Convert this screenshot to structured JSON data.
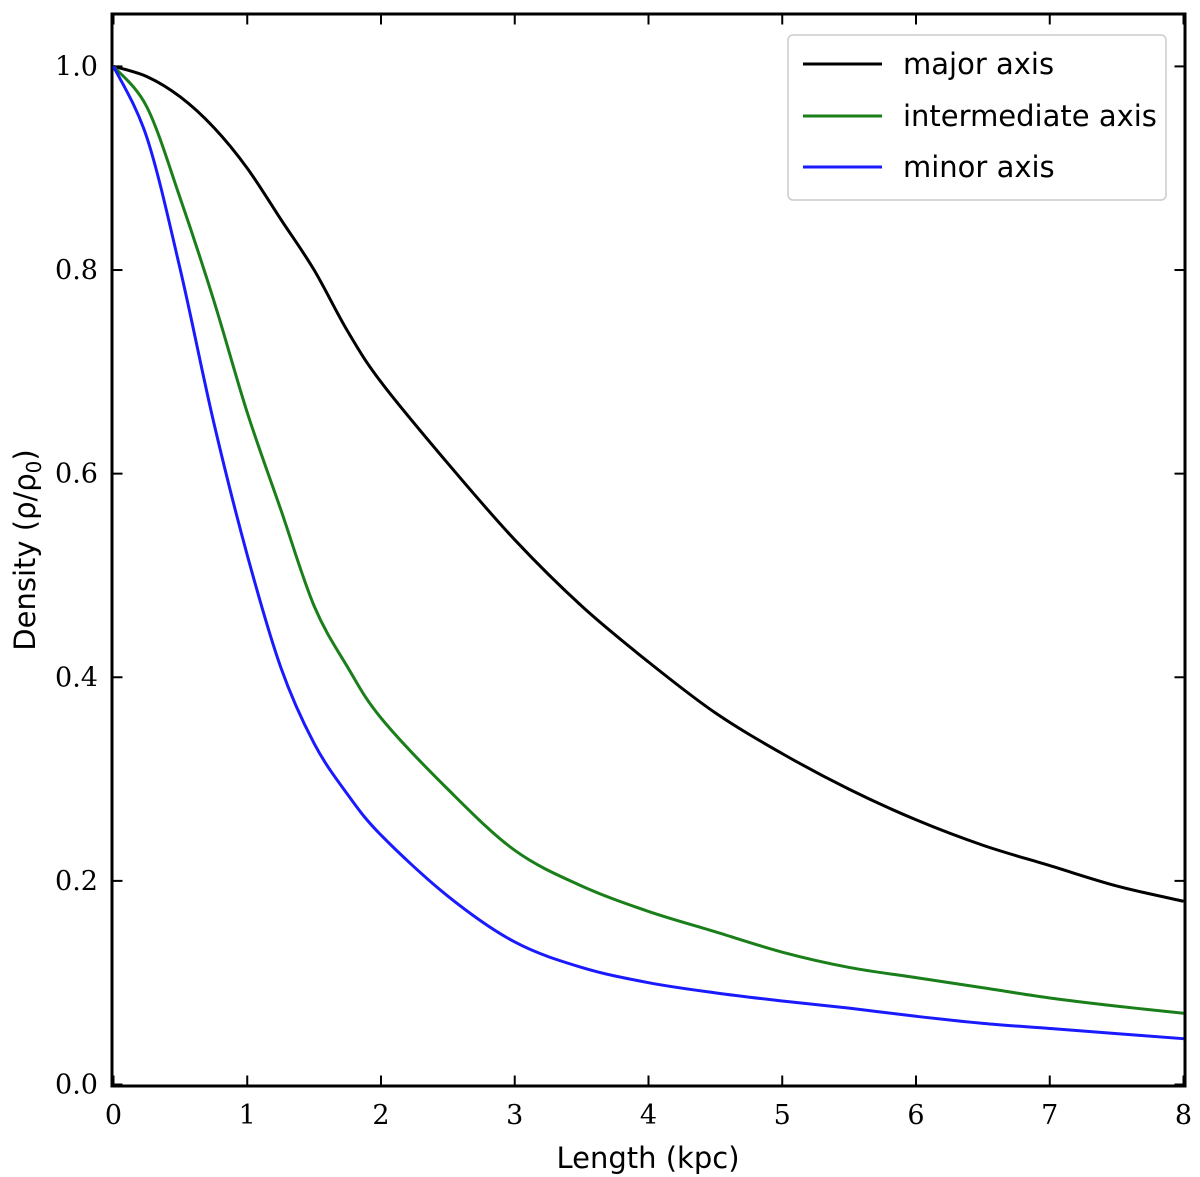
{
  "chart_data": {
    "type": "line",
    "title": "",
    "xlabel": "Length (kpc)",
    "ylabel": "Density (ρ/ρ",
    "ylabel_sub": "0",
    "ylabel_tail": ")",
    "xlim": [
      0,
      8
    ],
    "ylim": [
      0,
      1.05
    ],
    "x_ticks": [
      0,
      1,
      2,
      3,
      4,
      5,
      6,
      7,
      8
    ],
    "x_tick_labels": [
      "0",
      "1",
      "2",
      "3",
      "4",
      "5",
      "6",
      "7",
      "8"
    ],
    "y_ticks": [
      0.0,
      0.2,
      0.4,
      0.6,
      0.8,
      1.0
    ],
    "y_tick_labels": [
      "0.0",
      "0.2",
      "0.4",
      "0.6",
      "0.8",
      "1.0"
    ],
    "grid": false,
    "legend_position": "top-right",
    "x": [
      0,
      0.25,
      0.5,
      0.75,
      1,
      1.25,
      1.5,
      1.75,
      2,
      2.5,
      3,
      3.5,
      4,
      4.5,
      5,
      5.5,
      6,
      6.5,
      7,
      7.5,
      8
    ],
    "series": [
      {
        "name": "major axis",
        "color": "#000000",
        "values": [
          1.0,
          0.99,
          0.97,
          0.94,
          0.9,
          0.85,
          0.8,
          0.74,
          0.69,
          0.61,
          0.535,
          0.47,
          0.415,
          0.365,
          0.325,
          0.29,
          0.26,
          0.235,
          0.215,
          0.195,
          0.18
        ]
      },
      {
        "name": "intermediate axis",
        "color": "#1a7f1a",
        "values": [
          1.0,
          0.96,
          0.87,
          0.77,
          0.66,
          0.565,
          0.47,
          0.41,
          0.36,
          0.29,
          0.23,
          0.195,
          0.17,
          0.15,
          0.13,
          0.115,
          0.105,
          0.095,
          0.085,
          0.077,
          0.07
        ]
      },
      {
        "name": "minor axis",
        "color": "#1a1aff",
        "values": [
          1.0,
          0.93,
          0.8,
          0.65,
          0.52,
          0.41,
          0.335,
          0.285,
          0.245,
          0.185,
          0.14,
          0.115,
          0.1,
          0.09,
          0.082,
          0.075,
          0.067,
          0.06,
          0.055,
          0.05,
          0.045
        ]
      }
    ]
  }
}
